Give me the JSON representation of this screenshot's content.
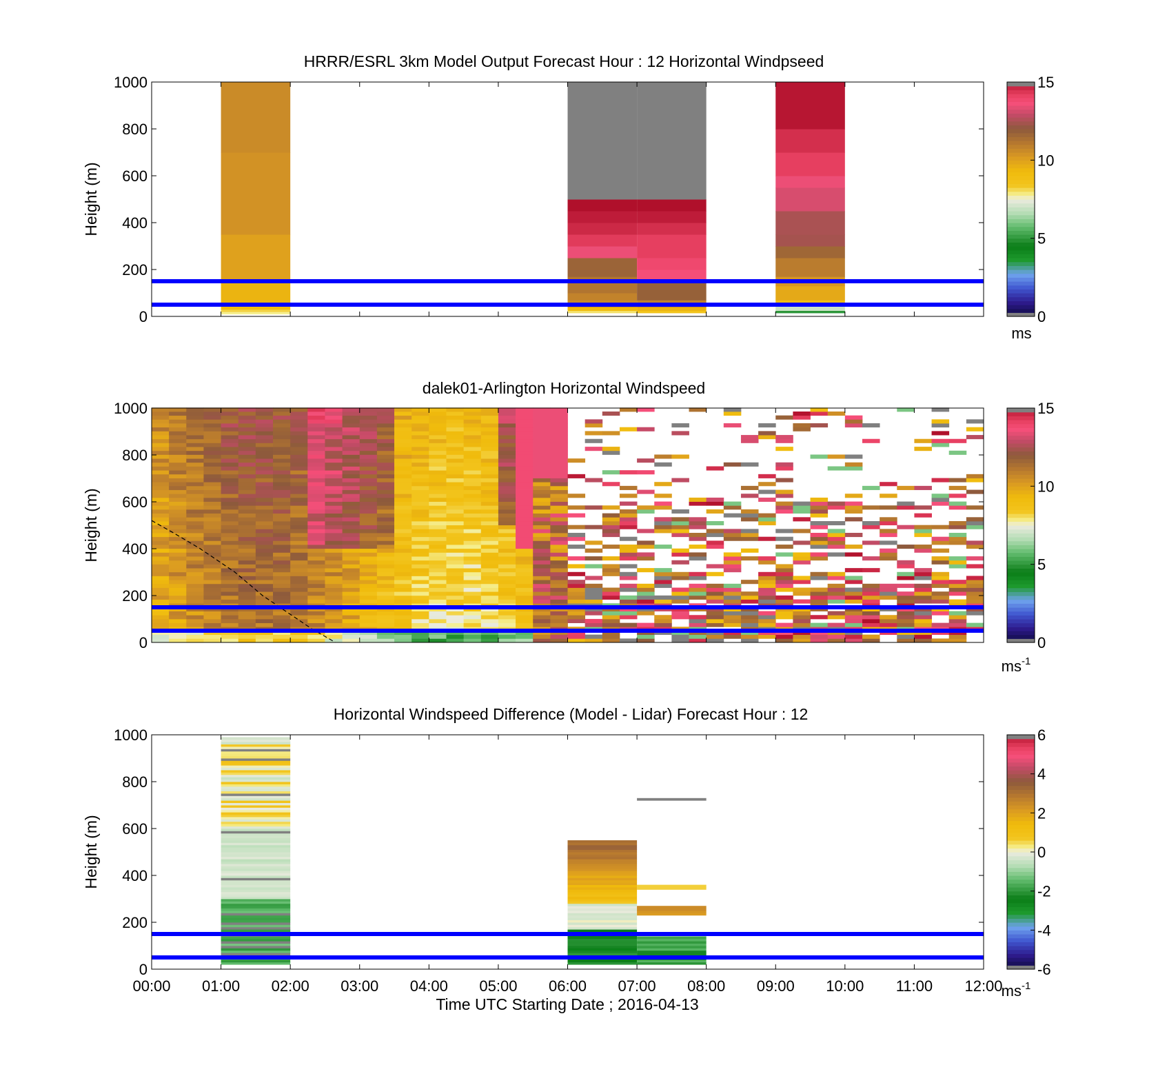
{
  "figure": {
    "xlabel": "Time UTC  Starting Date ; 2016-04-13",
    "x_tick_labels": [
      "00:00",
      "01:00",
      "02:00",
      "03:00",
      "04:00",
      "05:00",
      "06:00",
      "07:00",
      "08:00",
      "09:00",
      "10:00",
      "11:00",
      "12:00"
    ],
    "y_tick_labels": [
      "0",
      "200",
      "400",
      "600",
      "800",
      "1000"
    ],
    "reference_line_color": "#0000ff",
    "grey_flag_color": "#808080"
  },
  "chart_data": [
    {
      "type": "heatmap",
      "title": "HRRR/ESRL 3km Model Output   Forecast Hour : 12 Horizontal Windpseed",
      "ylabel": "Height (m)",
      "xlim_hours": [
        0,
        12
      ],
      "ylim": [
        0,
        1000
      ],
      "colorbar": {
        "min": 0,
        "max": 15,
        "ticks": [
          "0",
          "5",
          "10",
          "15"
        ],
        "tick_values": [
          0,
          5,
          10,
          15
        ],
        "unit_label": "ms",
        "unit_superscript": ""
      },
      "horizontal_lines_m": [
        50,
        150
      ],
      "columns": [
        {
          "start_h": 1,
          "end_h": 2,
          "profile": [
            [
              20,
              7.8
            ],
            [
              30,
              8.2
            ],
            [
              60,
              9.2
            ],
            [
              160,
              9.5
            ],
            [
              350,
              10.0
            ],
            [
              700,
              10.4
            ],
            [
              1000,
              10.6
            ]
          ]
        },
        {
          "start_h": 6,
          "end_h": 7,
          "profile": [
            [
              25,
              8
            ],
            [
              40,
              9.3
            ],
            [
              70,
              10.6
            ],
            [
              100,
              10.8
            ],
            [
              170,
              11.2
            ],
            [
              250,
              11.7
            ],
            [
              300,
              13.5
            ],
            [
              350,
              14.3
            ],
            [
              400,
              14.6
            ],
            [
              450,
              14.8
            ],
            [
              500,
              15.5
            ],
            [
              1000,
              "grey"
            ]
          ]
        },
        {
          "start_h": 7,
          "end_h": 8,
          "profile": [
            [
              25,
              8.5
            ],
            [
              40,
              9.5
            ],
            [
              70,
              10.8
            ],
            [
              160,
              11.8
            ],
            [
              200,
              13.7
            ],
            [
              250,
              13.9
            ],
            [
              350,
              14.2
            ],
            [
              400,
              14.5
            ],
            [
              450,
              14.8
            ],
            [
              500,
              15.4
            ],
            [
              1000,
              "grey"
            ]
          ]
        },
        {
          "start_h": 9,
          "end_h": 10,
          "profile": [
            [
              25,
              5
            ],
            [
              50,
              7
            ],
            [
              70,
              9
            ],
            [
              130,
              9.8
            ],
            [
              170,
              10.3
            ],
            [
              250,
              11
            ],
            [
              300,
              11.6
            ],
            [
              350,
              12.4
            ],
            [
              450,
              12.5
            ],
            [
              550,
              13.2
            ],
            [
              600,
              13.5
            ],
            [
              700,
              14.2
            ],
            [
              800,
              14.5
            ],
            [
              1000,
              14.9
            ]
          ]
        }
      ]
    },
    {
      "type": "heatmap",
      "title": "dalek01-Arlington  Horizontal Windspeed",
      "ylabel": "Height (m)",
      "xlim_hours": [
        0,
        12
      ],
      "ylim": [
        0,
        1000
      ],
      "colorbar": {
        "min": 0,
        "max": 15,
        "ticks": [
          "0",
          "5",
          "10",
          "15"
        ],
        "tick_values": [
          0,
          5,
          10,
          15
        ],
        "unit_label": "ms",
        "unit_superscript": "-1"
      },
      "horizontal_lines_m": [
        50,
        150
      ],
      "dashed_curve": [
        [
          0,
          520
        ],
        [
          0.3,
          470
        ],
        [
          0.7,
          400
        ],
        [
          1.2,
          300
        ],
        [
          1.6,
          200
        ],
        [
          2.0,
          120
        ],
        [
          2.3,
          60
        ],
        [
          2.65,
          0
        ]
      ]
    },
    {
      "type": "heatmap",
      "title": "Horizontal Windspeed Difference (Model - Lidar) Forecast Hour : 12",
      "ylabel": "Height (m)",
      "xlim_hours": [
        0,
        12
      ],
      "ylim": [
        0,
        1000
      ],
      "colorbar": {
        "min": -6,
        "max": 6,
        "ticks": [
          "-6",
          "-4",
          "-2",
          "0",
          "2",
          "4",
          "6"
        ],
        "tick_values": [
          -6,
          -4,
          -2,
          0,
          2,
          4,
          6
        ],
        "unit_label": "ms",
        "unit_superscript": "-1"
      },
      "horizontal_lines_m": [
        50,
        150
      ]
    }
  ]
}
